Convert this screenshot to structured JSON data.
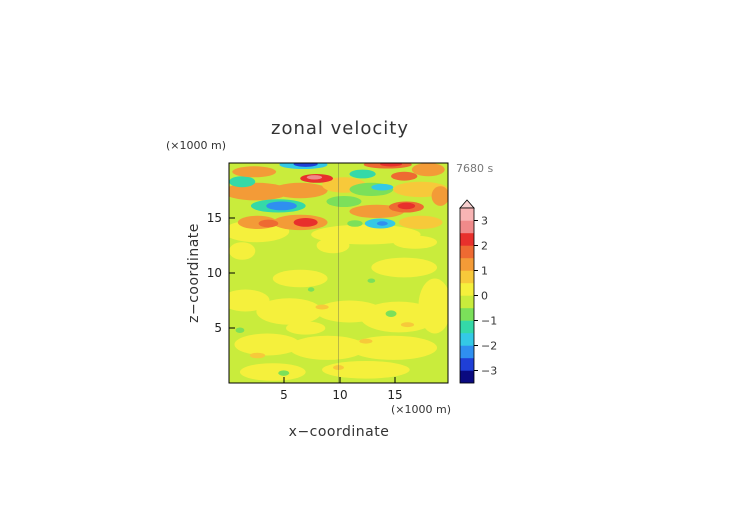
{
  "chart_data": {
    "type": "heatmap",
    "title": "zonal velocity",
    "time_label": "7680 s",
    "xlabel": "x−coordinate",
    "ylabel": "z−coordinate",
    "x_unit": "(×1000 m)",
    "y_unit": "(×1000 m)",
    "xlim": [
      0,
      20
    ],
    "ylim": [
      0,
      20
    ],
    "x_ticks": [
      "5",
      "10",
      "15"
    ],
    "y_ticks": [
      "5",
      "10",
      "15"
    ],
    "colorbar": {
      "ticks": [
        "3",
        "2",
        "1",
        "0",
        "−1",
        "−2",
        "−3"
      ],
      "tick_values": [
        3,
        2,
        1,
        0,
        -1,
        -2,
        -3
      ],
      "range": [
        -3.5,
        3.5
      ],
      "step": 0.5,
      "colors": [
        "#0a0a80",
        "#1f3fd6",
        "#2f8ff0",
        "#34c9e6",
        "#34d9a8",
        "#7be05a",
        "#c9ec3c",
        "#f5f03c",
        "#f7c93a",
        "#f39b37",
        "#ee6a32",
        "#e8302c",
        "#f08a8a",
        "#f8b4b4"
      ]
    }
  }
}
